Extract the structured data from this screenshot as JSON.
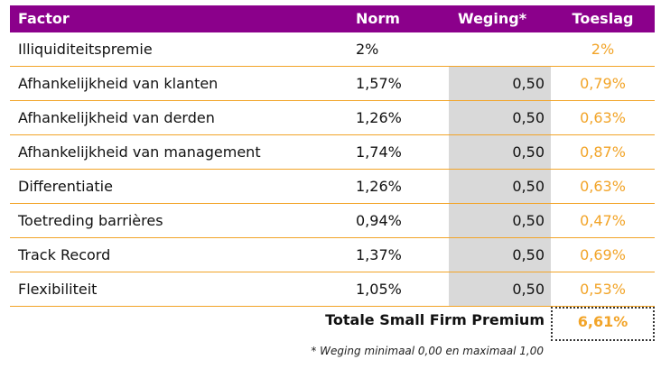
{
  "table": {
    "headers": {
      "factor": "Factor",
      "norm": "Norm",
      "weging": "Weging*",
      "toeslag": "Toeslag"
    },
    "rows": [
      {
        "factor": "Illiquiditeitspremie",
        "norm": "2%",
        "weging": "",
        "toeslag": "2%"
      },
      {
        "factor": "Afhankelijkheid van klanten",
        "norm": "1,57%",
        "weging": "0,50",
        "toeslag": "0,79%"
      },
      {
        "factor": "Afhankelijkheid van derden",
        "norm": "1,26%",
        "weging": "0,50",
        "toeslag": "0,63%"
      },
      {
        "factor": "Afhankelijkheid van management",
        "norm": "1,74%",
        "weging": "0,50",
        "toeslag": "0,87%"
      },
      {
        "factor": "Differentiatie",
        "norm": "1,26%",
        "weging": "0,50",
        "toeslag": "0,63%"
      },
      {
        "factor": "Toetreding barrières",
        "norm": "0,94%",
        "weging": "0,50",
        "toeslag": "0,47%"
      },
      {
        "factor": "Track Record",
        "norm": "1,37%",
        "weging": "0,50",
        "toeslag": "0,69%"
      },
      {
        "factor": "Flexibiliteit",
        "norm": "1,05%",
        "weging": "0,50",
        "toeslag": "0,53%"
      }
    ],
    "total_label": "Totale Small Firm Premium",
    "total_value": "6,61%"
  },
  "footnote": "* Weging minimaal 0,00 en maximaal 1,00",
  "colors": {
    "header_bg": "#8b008b",
    "accent": "#f2a428",
    "weging_shade": "#d9d9d9"
  }
}
